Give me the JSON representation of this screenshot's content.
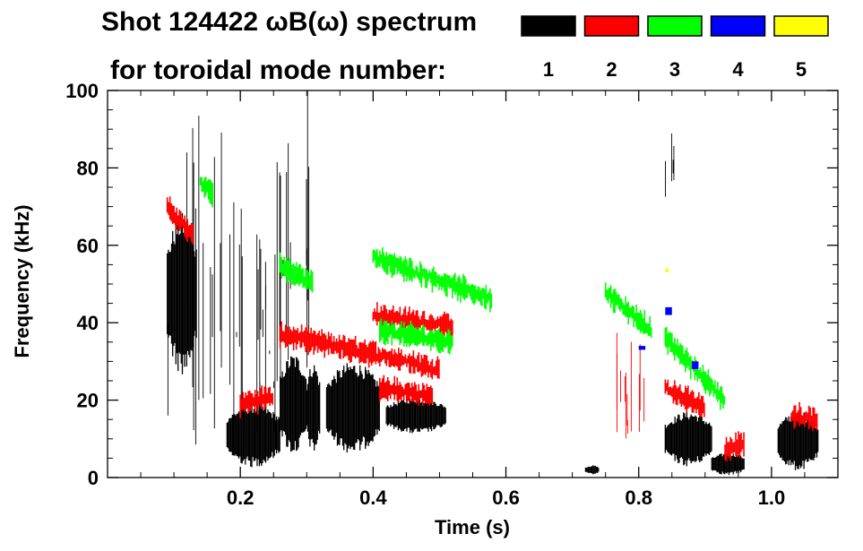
{
  "chart_data": {
    "type": "heatmap",
    "title_line1": "Shot 124422 ωB(ω) spectrum",
    "title_line2": "for toroidal mode number:",
    "xlabel": "Time (s)",
    "ylabel": "Frequency (kHz)",
    "xlim": [
      0.0,
      1.1
    ],
    "ylim": [
      0,
      100
    ],
    "x_ticks": [
      0.2,
      0.4,
      0.6,
      0.8,
      1.0
    ],
    "x_tick_labels": [
      "0.2",
      "0.4",
      "0.6",
      "0.8",
      "1.0"
    ],
    "y_ticks": [
      0,
      20,
      40,
      60,
      80,
      100
    ],
    "y_tick_labels": [
      "0",
      "20",
      "40",
      "60",
      "80",
      "100"
    ],
    "legend": [
      {
        "label": "1",
        "color": "#000000"
      },
      {
        "label": "2",
        "color": "#ff0000"
      },
      {
        "label": "3",
        "color": "#00ff00"
      },
      {
        "label": "4",
        "color": "#0000ff"
      },
      {
        "label": "5",
        "color": "#ffff00"
      }
    ],
    "legend_placement": "top-right",
    "series": [
      {
        "name": "1",
        "color": "#000000",
        "blobs": [
          {
            "t": [
              0.09,
              0.135
            ],
            "f": [
              30,
              65
            ]
          },
          {
            "t": [
              0.18,
              0.26
            ],
            "f": [
              4,
              18
            ]
          },
          {
            "t": [
              0.26,
              0.3
            ],
            "f": [
              8,
              30
            ]
          },
          {
            "t": [
              0.3,
              0.32
            ],
            "f": [
              8,
              28
            ]
          },
          {
            "t": [
              0.33,
              0.41
            ],
            "f": [
              8,
              28
            ]
          },
          {
            "t": [
              0.42,
              0.51
            ],
            "f": [
              12,
              20
            ]
          },
          {
            "t": [
              0.84,
              0.91
            ],
            "f": [
              4,
              16
            ]
          },
          {
            "t": [
              0.91,
              0.96
            ],
            "f": [
              1,
              6
            ]
          },
          {
            "t": [
              1.01,
              1.07
            ],
            "f": [
              3,
              16
            ]
          },
          {
            "t": [
              0.72,
              0.74
            ],
            "f": [
              1,
              3
            ]
          }
        ],
        "streaks": [
          {
            "t": [
              0.09,
              0.26
            ],
            "f": [
              2,
              100
            ]
          },
          {
            "t": [
              0.26,
              0.31
            ],
            "f": [
              10,
              100
            ]
          },
          {
            "t": [
              0.84,
              0.86
            ],
            "f": [
              70,
              90
            ]
          }
        ]
      },
      {
        "name": "2",
        "color": "#ff0000",
        "lines": [
          {
            "t": [
              0.09,
              0.13
            ],
            "f": [
              70,
              62
            ]
          },
          {
            "t": [
              0.26,
              0.4
            ],
            "f": [
              37,
              32
            ]
          },
          {
            "t": [
              0.4,
              0.5
            ],
            "f": [
              32,
              28
            ]
          },
          {
            "t": [
              0.4,
              0.52
            ],
            "f": [
              42,
              39
            ]
          },
          {
            "t": [
              0.41,
              0.49
            ],
            "f": [
              23,
              21
            ]
          },
          {
            "t": [
              0.2,
              0.25
            ],
            "f": [
              19,
              21
            ]
          },
          {
            "t": [
              0.84,
              0.9
            ],
            "f": [
              23,
              18
            ]
          },
          {
            "t": [
              0.93,
              0.96
            ],
            "f": [
              7,
              9
            ]
          },
          {
            "t": [
              1.03,
              1.07
            ],
            "f": [
              16,
              15
            ]
          }
        ],
        "streaks": [
          {
            "t": [
              0.76,
              0.82
            ],
            "f": [
              10,
              38
            ]
          }
        ]
      },
      {
        "name": "3",
        "color": "#00ff00",
        "lines": [
          {
            "t": [
              0.4,
              0.58
            ],
            "f": [
              57,
              46
            ]
          },
          {
            "t": [
              0.26,
              0.31
            ],
            "f": [
              55,
              50
            ]
          },
          {
            "t": [
              0.41,
              0.52
            ],
            "f": [
              38,
              35
            ]
          },
          {
            "t": [
              0.75,
              0.82
            ],
            "f": [
              48,
              38
            ]
          },
          {
            "t": [
              0.84,
              0.93
            ],
            "f": [
              36,
              20
            ]
          },
          {
            "t": [
              0.14,
              0.16
            ],
            "f": [
              76,
              73
            ]
          }
        ]
      },
      {
        "name": "4",
        "color": "#0000ff",
        "points": [
          {
            "t": [
              0.84,
              0.85
            ],
            "f": [
              42,
              44
            ]
          },
          {
            "t": [
              0.88,
              0.89
            ],
            "f": [
              28,
              30
            ]
          },
          {
            "t": [
              0.8,
              0.81
            ],
            "f": [
              33,
              34
            ]
          }
        ]
      },
      {
        "name": "5",
        "color": "#ffff00",
        "points": [
          {
            "t": [
              0.84,
              0.845
            ],
            "f": [
              53,
              54
            ]
          }
        ]
      }
    ]
  }
}
